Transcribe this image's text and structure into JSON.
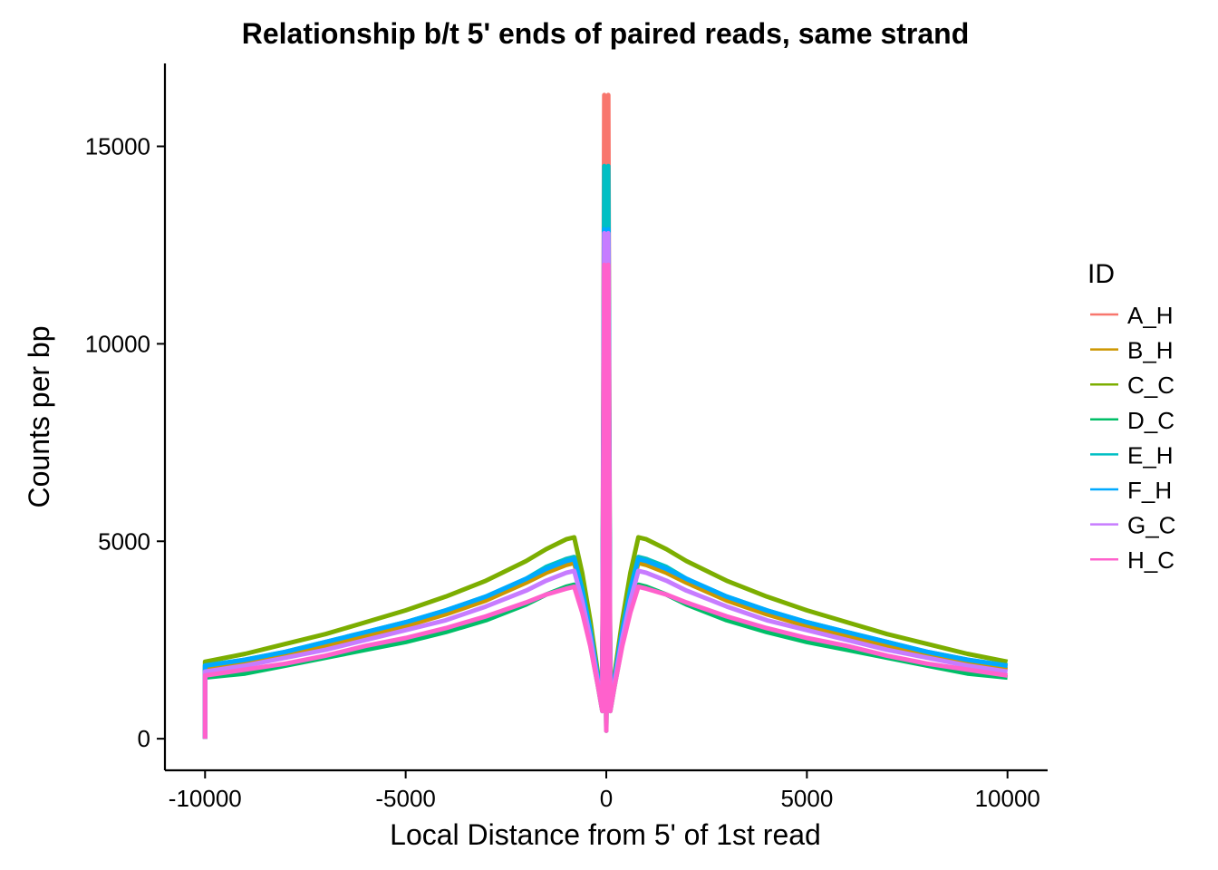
{
  "chart_data": {
    "type": "line",
    "title": "Relationship b/t 5' ends of paired reads, same strand",
    "xlabel": "Local Distance from 5' of 1st read",
    "ylabel": "Counts per bp",
    "xlim": [
      -11000,
      11000
    ],
    "ylim": [
      -800,
      17100
    ],
    "x_ticks": [
      -10000,
      -5000,
      0,
      5000,
      10000
    ],
    "x_tick_labels": [
      "-10000",
      "-5000",
      "0",
      "5000",
      "10000"
    ],
    "y_ticks": [
      0,
      5000,
      10000,
      15000
    ],
    "y_tick_labels": [
      "0",
      "5000",
      "10000",
      "15000"
    ],
    "grid": false,
    "legend": {
      "title": "ID",
      "position": "right"
    },
    "x": [
      -10000,
      -9000,
      -8000,
      -7000,
      -6000,
      -5000,
      -4000,
      -3000,
      -2000,
      -1500,
      -1000,
      -800,
      -600,
      -400,
      -200,
      -100,
      -50,
      0,
      50,
      100,
      200,
      400,
      600,
      800,
      1000,
      1500,
      2000,
      3000,
      4000,
      5000,
      6000,
      7000,
      8000,
      9000,
      10000
    ],
    "series": [
      {
        "name": "A_H",
        "color": "#F8766D",
        "values": [
          1800,
          1950,
          2150,
          2400,
          2650,
          2900,
          3200,
          3550,
          4000,
          4300,
          4550,
          4600,
          3800,
          2800,
          1500,
          800,
          16300,
          300,
          16300,
          800,
          1500,
          2800,
          3800,
          4600,
          4550,
          4300,
          4000,
          3550,
          3200,
          2900,
          2650,
          2400,
          2150,
          1950,
          1800
        ]
      },
      {
        "name": "B_H",
        "color": "#CD9600",
        "values": [
          1750,
          1900,
          2100,
          2350,
          2600,
          2850,
          3150,
          3500,
          3950,
          4200,
          4400,
          4450,
          3700,
          2700,
          1450,
          750,
          12000,
          250,
          12000,
          750,
          1450,
          2700,
          3700,
          4450,
          4400,
          4200,
          3950,
          3500,
          3150,
          2850,
          2600,
          2350,
          2100,
          1900,
          1750
        ]
      },
      {
        "name": "C_C",
        "color": "#7CAE00",
        "values": [
          1950,
          2150,
          2400,
          2650,
          2950,
          3250,
          3600,
          4000,
          4500,
          4800,
          5050,
          5100,
          4200,
          3000,
          1600,
          850,
          12000,
          300,
          12000,
          850,
          1600,
          3000,
          4200,
          5100,
          5050,
          4800,
          4500,
          4000,
          3600,
          3250,
          2950,
          2650,
          2400,
          2150,
          1950
        ]
      },
      {
        "name": "D_C",
        "color": "#00BE67",
        "values": [
          1550,
          1650,
          1850,
          2050,
          2250,
          2450,
          2700,
          3000,
          3400,
          3650,
          3850,
          3900,
          3250,
          2400,
          1300,
          700,
          12000,
          200,
          12000,
          700,
          1300,
          2400,
          3250,
          3900,
          3850,
          3650,
          3400,
          3000,
          2700,
          2450,
          2250,
          2050,
          1850,
          1650,
          1550
        ]
      },
      {
        "name": "E_H",
        "color": "#00BFC4",
        "values": [
          1850,
          2000,
          2200,
          2450,
          2700,
          2950,
          3250,
          3600,
          4050,
          4350,
          4550,
          4600,
          3800,
          2750,
          1500,
          800,
          14500,
          300,
          14500,
          800,
          1500,
          2750,
          3800,
          4600,
          4550,
          4350,
          4050,
          3600,
          3250,
          2950,
          2700,
          2450,
          2200,
          2000,
          1850
        ]
      },
      {
        "name": "F_H",
        "color": "#00A9FF",
        "values": [
          1850,
          2000,
          2200,
          2450,
          2700,
          2950,
          3250,
          3600,
          4050,
          4300,
          4500,
          4550,
          3750,
          2750,
          1500,
          800,
          12900,
          300,
          12900,
          800,
          1500,
          2750,
          3750,
          4550,
          4500,
          4300,
          4050,
          3600,
          3250,
          2950,
          2700,
          2450,
          2200,
          2000,
          1850
        ]
      },
      {
        "name": "G_C",
        "color": "#C77CFF",
        "values": [
          1700,
          1850,
          2050,
          2250,
          2500,
          2750,
          3000,
          3350,
          3750,
          4000,
          4200,
          4250,
          3500,
          2550,
          1400,
          750,
          12800,
          250,
          12800,
          750,
          1400,
          2550,
          3500,
          4250,
          4200,
          4000,
          3750,
          3350,
          3000,
          2750,
          2500,
          2250,
          2050,
          1850,
          1700
        ]
      },
      {
        "name": "H_C",
        "color": "#FF61CC",
        "values": [
          1600,
          1750,
          1900,
          2100,
          2350,
          2550,
          2800,
          3100,
          3450,
          3650,
          3800,
          3850,
          3200,
          2350,
          1300,
          700,
          12000,
          200,
          12000,
          700,
          1300,
          2350,
          3200,
          3850,
          3800,
          3650,
          3450,
          3100,
          2800,
          2550,
          2350,
          2100,
          1900,
          1750,
          1600
        ]
      }
    ]
  }
}
